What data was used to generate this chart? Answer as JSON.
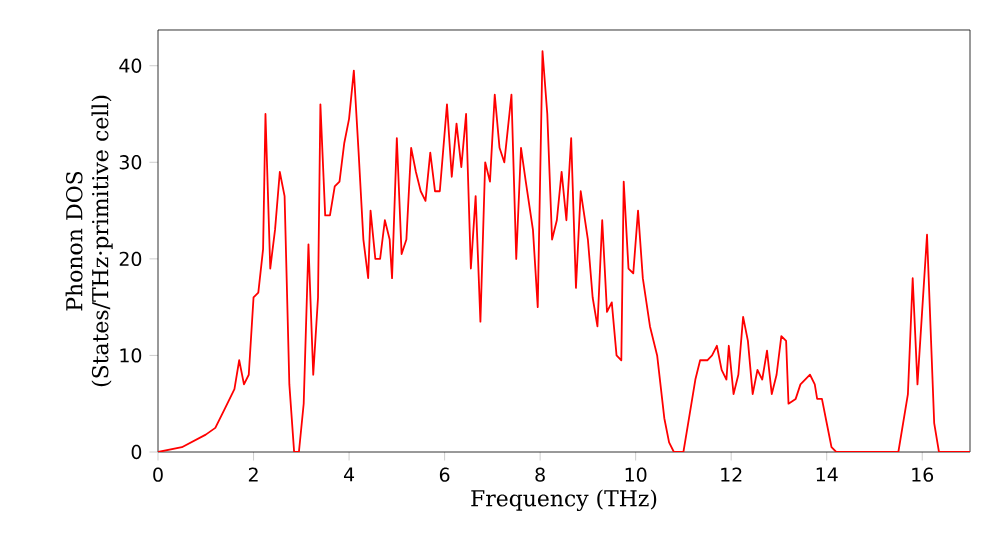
{
  "chart_data": {
    "type": "line",
    "xlabel": "Frequency (THz)",
    "ylabel": "Phonon DOS (States/THz·primitive cell)",
    "xlim": [
      0,
      17
    ],
    "ylim": [
      0,
      43.7
    ],
    "xticks": [
      0,
      2,
      4,
      6,
      8,
      10,
      12,
      14,
      16
    ],
    "yticks": [
      0,
      10,
      20,
      30,
      40
    ],
    "marker": "none",
    "line_style": "solid",
    "series": [
      {
        "color": "#ff0000",
        "x": [
          0,
          0.5,
          1,
          1.2,
          1.4,
          1.6,
          1.7,
          1.8,
          1.9,
          2.0,
          2.1,
          2.2,
          2.25,
          2.35,
          2.45,
          2.55,
          2.65,
          2.75,
          2.85,
          2.95,
          3.05,
          3.15,
          3.25,
          3.35,
          3.4,
          3.5,
          3.6,
          3.7,
          3.8,
          3.9,
          4.0,
          4.1,
          4.2,
          4.3,
          4.4,
          4.45,
          4.55,
          4.65,
          4.75,
          4.85,
          4.9,
          5.0,
          5.1,
          5.2,
          5.3,
          5.4,
          5.5,
          5.6,
          5.7,
          5.8,
          5.9,
          6.05,
          6.15,
          6.25,
          6.35,
          6.45,
          6.55,
          6.65,
          6.75,
          6.85,
          6.95,
          7.05,
          7.15,
          7.25,
          7.4,
          7.5,
          7.6,
          7.7,
          7.85,
          7.95,
          8.05,
          8.15,
          8.25,
          8.35,
          8.45,
          8.55,
          8.65,
          8.75,
          8.85,
          9.0,
          9.1,
          9.2,
          9.3,
          9.4,
          9.5,
          9.6,
          9.7,
          9.75,
          9.85,
          9.95,
          10.05,
          10.15,
          10.3,
          10.45,
          10.6,
          10.7,
          10.8,
          11.0,
          11.1,
          11.25,
          11.35,
          11.5,
          11.6,
          11.7,
          11.8,
          11.9,
          11.95,
          12.05,
          12.15,
          12.25,
          12.35,
          12.45,
          12.55,
          12.65,
          12.75,
          12.85,
          12.95,
          13.05,
          13.15,
          13.2,
          13.35,
          13.45,
          13.55,
          13.65,
          13.75,
          13.8,
          13.9,
          14.0,
          14.1,
          14.2,
          15.5,
          15.7,
          15.8,
          15.9,
          16.1,
          16.25,
          16.35,
          17
        ],
        "values": [
          0,
          0.5,
          1.8,
          2.5,
          4.5,
          6.5,
          9.5,
          7,
          8,
          16,
          16.5,
          21,
          35,
          19,
          23,
          29,
          26.5,
          7,
          0,
          0,
          5,
          21.5,
          8,
          16,
          36,
          24.5,
          24.5,
          27.5,
          28,
          32,
          34.5,
          39.5,
          31,
          22,
          18,
          25,
          20,
          20,
          24,
          22,
          18,
          32.5,
          20.5,
          22,
          31.5,
          29,
          27,
          26,
          31,
          27,
          27,
          36,
          28.5,
          34,
          29.5,
          35,
          19,
          26.5,
          13.5,
          30,
          28,
          37,
          31.5,
          30,
          37,
          20,
          31.5,
          28,
          23,
          15,
          41.5,
          35,
          22,
          24,
          29,
          24,
          32.5,
          17,
          27,
          22,
          16,
          13,
          24,
          14.5,
          15.5,
          10,
          9.5,
          28,
          19,
          18.5,
          25,
          18,
          13,
          10,
          3.5,
          1,
          0,
          0,
          3,
          7.5,
          9.5,
          9.5,
          10,
          11,
          8.5,
          7.5,
          11,
          6,
          8,
          14,
          11.5,
          6,
          8.5,
          7.5,
          10.5,
          6,
          8,
          12,
          11.5,
          5,
          5.5,
          7,
          7.5,
          8,
          7,
          5.5,
          5.5,
          3,
          0.5,
          0,
          0,
          6,
          18,
          7,
          22.5,
          3,
          0,
          0
        ]
      }
    ]
  }
}
